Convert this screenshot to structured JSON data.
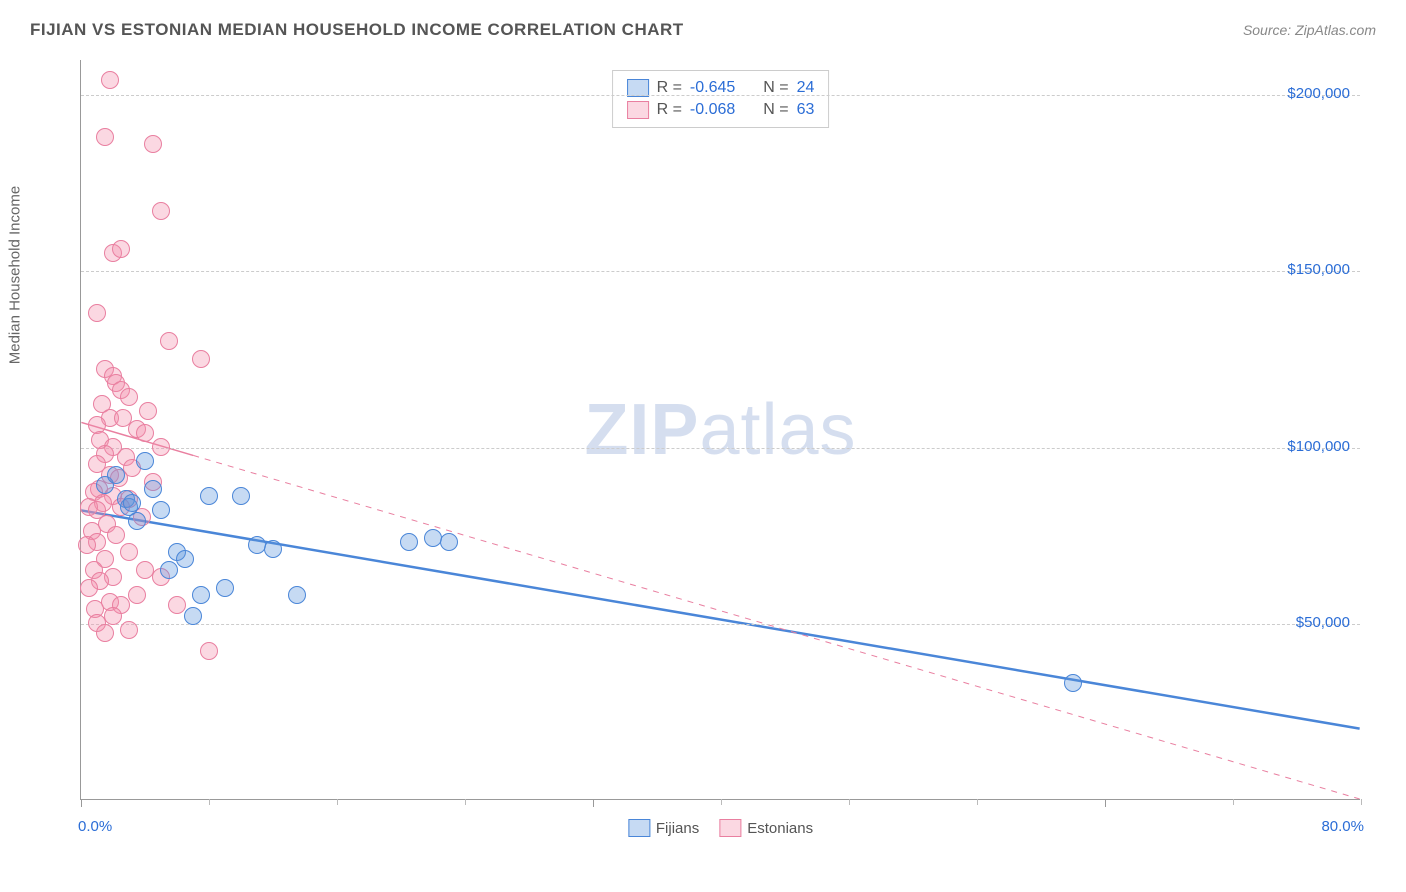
{
  "title": "FIJIAN VS ESTONIAN MEDIAN HOUSEHOLD INCOME CORRELATION CHART",
  "source_label": "Source: ZipAtlas.com",
  "watermark": {
    "bold": "ZIP",
    "light": "atlas"
  },
  "chart": {
    "type": "scatter",
    "ylabel": "Median Household Income",
    "xlim": [
      0,
      80
    ],
    "ylim": [
      0,
      210000
    ],
    "x_start_label": "0.0%",
    "x_end_label": "80.0%",
    "y_ticks": [
      50000,
      100000,
      150000,
      200000
    ],
    "y_tick_labels": [
      "$50,000",
      "$100,000",
      "$150,000",
      "$200,000"
    ],
    "x_major_ticks": [
      0,
      32,
      64
    ],
    "x_minor_ticks": [
      8,
      16,
      24,
      40,
      48,
      56,
      72,
      80
    ],
    "grid_color": "#cccccc",
    "axis_color": "#999999",
    "background": "#ffffff",
    "label_color": "#2b6dd6",
    "series": [
      {
        "name": "Fijians",
        "fill": "rgba(93,150,222,0.35)",
        "stroke": "#4a86d8",
        "R": "-0.645",
        "N": "24",
        "trend": {
          "x1": 0,
          "y1": 82000,
          "x2": 80,
          "y2": 20000,
          "solid_to_x": 80,
          "dash": false,
          "width": 2.5
        },
        "points": [
          [
            1.5,
            89000
          ],
          [
            2.2,
            92000
          ],
          [
            2.8,
            85000
          ],
          [
            3.0,
            83000
          ],
          [
            3.2,
            84000
          ],
          [
            3.5,
            79000
          ],
          [
            4.0,
            96000
          ],
          [
            4.5,
            88000
          ],
          [
            5.0,
            82000
          ],
          [
            5.5,
            65000
          ],
          [
            6.0,
            70000
          ],
          [
            6.5,
            68000
          ],
          [
            7.0,
            52000
          ],
          [
            7.5,
            58000
          ],
          [
            8.0,
            86000
          ],
          [
            9.0,
            60000
          ],
          [
            10.0,
            86000
          ],
          [
            11.0,
            72000
          ],
          [
            12.0,
            71000
          ],
          [
            13.5,
            58000
          ],
          [
            20.5,
            73000
          ],
          [
            22.0,
            74000
          ],
          [
            23.0,
            73000
          ],
          [
            62.0,
            33000
          ]
        ]
      },
      {
        "name": "Estonians",
        "fill": "rgba(244,143,171,0.35)",
        "stroke": "#e97fa0",
        "R": "-0.068",
        "N": "63",
        "trend": {
          "x1": 0,
          "y1": 107000,
          "x2": 80,
          "y2": 0,
          "solid_to_x": 7,
          "dash": true,
          "width": 1.5
        },
        "points": [
          [
            1.8,
            204000
          ],
          [
            1.5,
            188000
          ],
          [
            4.5,
            186000
          ],
          [
            5.0,
            167000
          ],
          [
            2.0,
            155000
          ],
          [
            2.5,
            156000
          ],
          [
            1.0,
            138000
          ],
          [
            5.5,
            130000
          ],
          [
            7.5,
            125000
          ],
          [
            1.5,
            122000
          ],
          [
            2.0,
            120000
          ],
          [
            2.2,
            118000
          ],
          [
            2.5,
            116000
          ],
          [
            3.0,
            114000
          ],
          [
            1.3,
            112000
          ],
          [
            4.2,
            110000
          ],
          [
            1.8,
            108000
          ],
          [
            2.6,
            108000
          ],
          [
            1.0,
            106000
          ],
          [
            3.5,
            105000
          ],
          [
            4.0,
            104000
          ],
          [
            1.2,
            102000
          ],
          [
            2.0,
            100000
          ],
          [
            5.0,
            100000
          ],
          [
            1.5,
            98000
          ],
          [
            2.8,
            97000
          ],
          [
            1.0,
            95000
          ],
          [
            3.2,
            94000
          ],
          [
            1.8,
            92000
          ],
          [
            2.4,
            91000
          ],
          [
            4.5,
            90000
          ],
          [
            1.1,
            88000
          ],
          [
            0.8,
            87000
          ],
          [
            2.0,
            86000
          ],
          [
            3.0,
            85000
          ],
          [
            1.4,
            84000
          ],
          [
            0.5,
            83000
          ],
          [
            2.5,
            83000
          ],
          [
            1.0,
            82000
          ],
          [
            3.8,
            80000
          ],
          [
            1.6,
            78000
          ],
          [
            0.7,
            76000
          ],
          [
            2.2,
            75000
          ],
          [
            1.0,
            73000
          ],
          [
            0.4,
            72000
          ],
          [
            3.0,
            70000
          ],
          [
            1.5,
            68000
          ],
          [
            0.8,
            65000
          ],
          [
            4.0,
            65000
          ],
          [
            2.0,
            63000
          ],
          [
            1.2,
            62000
          ],
          [
            5.0,
            63000
          ],
          [
            0.5,
            60000
          ],
          [
            3.5,
            58000
          ],
          [
            1.8,
            56000
          ],
          [
            2.5,
            55000
          ],
          [
            0.9,
            54000
          ],
          [
            6.0,
            55000
          ],
          [
            1.0,
            50000
          ],
          [
            2.0,
            52000
          ],
          [
            3.0,
            48000
          ],
          [
            1.5,
            47000
          ],
          [
            8.0,
            42000
          ]
        ]
      }
    ],
    "legend_bottom": [
      "Fijians",
      "Estonians"
    ]
  }
}
